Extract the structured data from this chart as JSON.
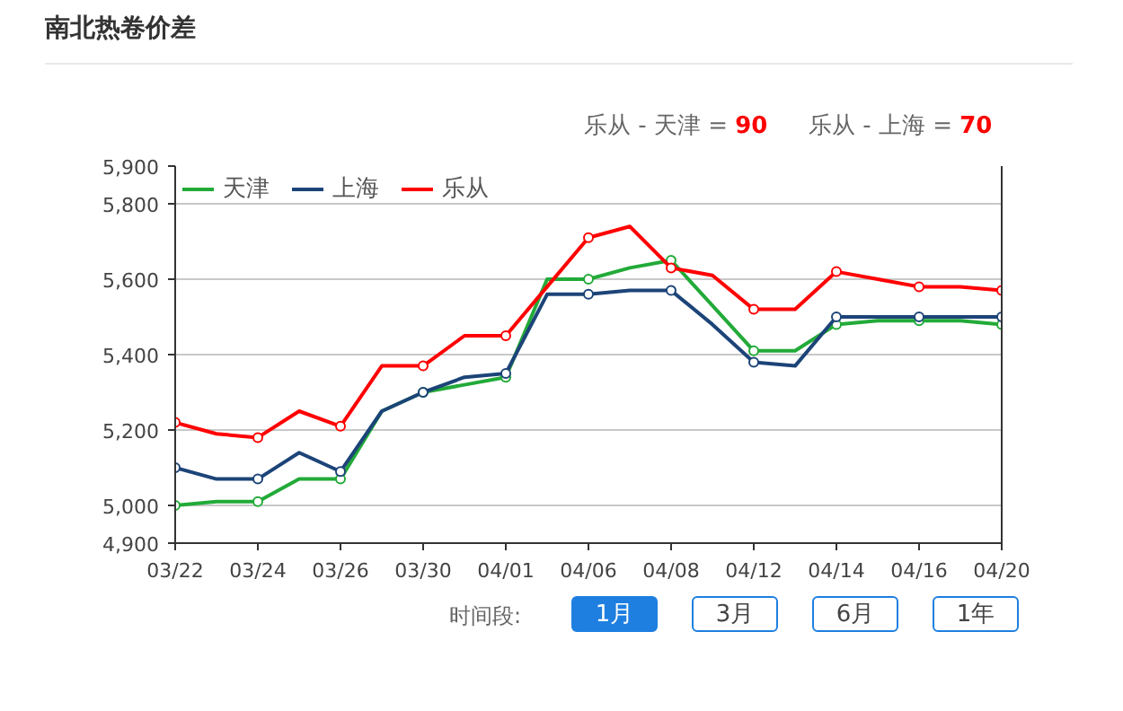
{
  "chart_data": {
    "type": "line",
    "title": "南北热卷价差",
    "categories": [
      "03/22",
      null,
      "03/24",
      null,
      "03/26",
      null,
      "03/30",
      null,
      "04/01",
      null,
      "04/06",
      null,
      "04/08",
      null,
      "04/12",
      null,
      "04/14",
      null,
      "04/16",
      null,
      "04/20"
    ],
    "series": [
      {
        "name": "天津",
        "color": "#22aa38",
        "values": [
          5000,
          5010,
          5010,
          5070,
          5070,
          5250,
          5300,
          5320,
          5340,
          5600,
          5600,
          5630,
          5650,
          5530,
          5410,
          5410,
          5480,
          5490,
          5490,
          5490,
          5480
        ]
      },
      {
        "name": "上海",
        "color": "#1c4478",
        "values": [
          5100,
          5070,
          5070,
          5140,
          5090,
          5250,
          5300,
          5340,
          5350,
          5560,
          5560,
          5570,
          5570,
          5480,
          5380,
          5370,
          5500,
          5500,
          5500,
          5500,
          5500
        ]
      },
      {
        "name": "乐从",
        "color": "#ff0000",
        "values": [
          5220,
          5190,
          5180,
          5250,
          5210,
          5370,
          5370,
          5450,
          5450,
          5580,
          5710,
          5740,
          5630,
          5610,
          5520,
          5520,
          5620,
          5600,
          5580,
          5580,
          5570
        ]
      }
    ],
    "ylim": [
      4900,
      5900
    ],
    "yticks": [
      {
        "value": 4900,
        "label": "4,900"
      },
      {
        "value": 5000,
        "label": "5,000"
      },
      {
        "value": 5200,
        "label": "5,200"
      },
      {
        "value": 5400,
        "label": "5,400"
      },
      {
        "value": 5600,
        "label": "5,600"
      },
      {
        "value": 5800,
        "label": "5,800"
      },
      {
        "value": 5900,
        "label": "5,900"
      }
    ],
    "grid": "y",
    "legend": "top left",
    "marker": "circle",
    "line_style": "solid",
    "annotations": [
      "乐从 - 天津 = 90",
      "乐从 - 上海 = 70",
      "时间段:",
      "1月",
      "3月",
      "6月",
      "1年"
    ]
  }
}
